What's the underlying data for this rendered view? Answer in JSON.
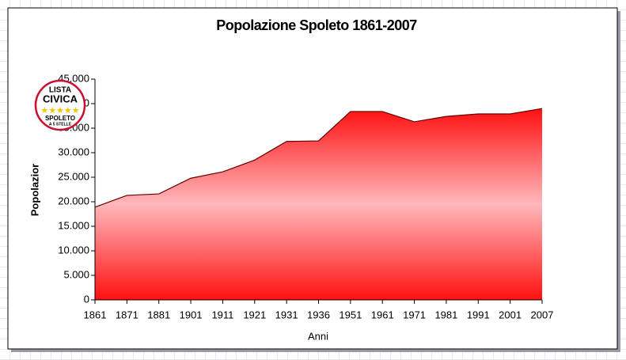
{
  "chart_data": {
    "type": "area",
    "title": "Popolazione Spoleto 1861-2007",
    "x_label": "Anni",
    "y_label": "Popolazior",
    "categories": [
      "1861",
      "1871",
      "1881",
      "1901",
      "1911",
      "1921",
      "1931",
      "1936",
      "1951",
      "1961",
      "1971",
      "1981",
      "1991",
      "2001",
      "2007"
    ],
    "values": [
      18900,
      21300,
      21600,
      24800,
      26100,
      28500,
      32300,
      32400,
      38400,
      38400,
      36300,
      37400,
      37900,
      37900,
      39000
    ],
    "ylim": [
      0,
      45000
    ],
    "yticks": [
      0,
      {
        "value": 5000,
        "label": "5.000"
      },
      {
        "value": 10000,
        "label": "10.000"
      },
      {
        "value": 15000,
        "label": "15.000"
      },
      {
        "value": 20000,
        "label": "20.000"
      },
      {
        "value": 25000,
        "label": "25.000"
      },
      {
        "value": 30000,
        "label": "30.000"
      },
      {
        "value": 35000,
        "label": "35.000"
      },
      {
        "value": 40000,
        "label": "40.000"
      },
      {
        "value": 45000,
        "label": "45.000"
      }
    ],
    "color": "#ff1a1a",
    "grid": false
  },
  "logo": {
    "lines": [
      "LISTA",
      "CIVICA",
      "SPOLETO",
      "A 5 STELLE"
    ]
  }
}
